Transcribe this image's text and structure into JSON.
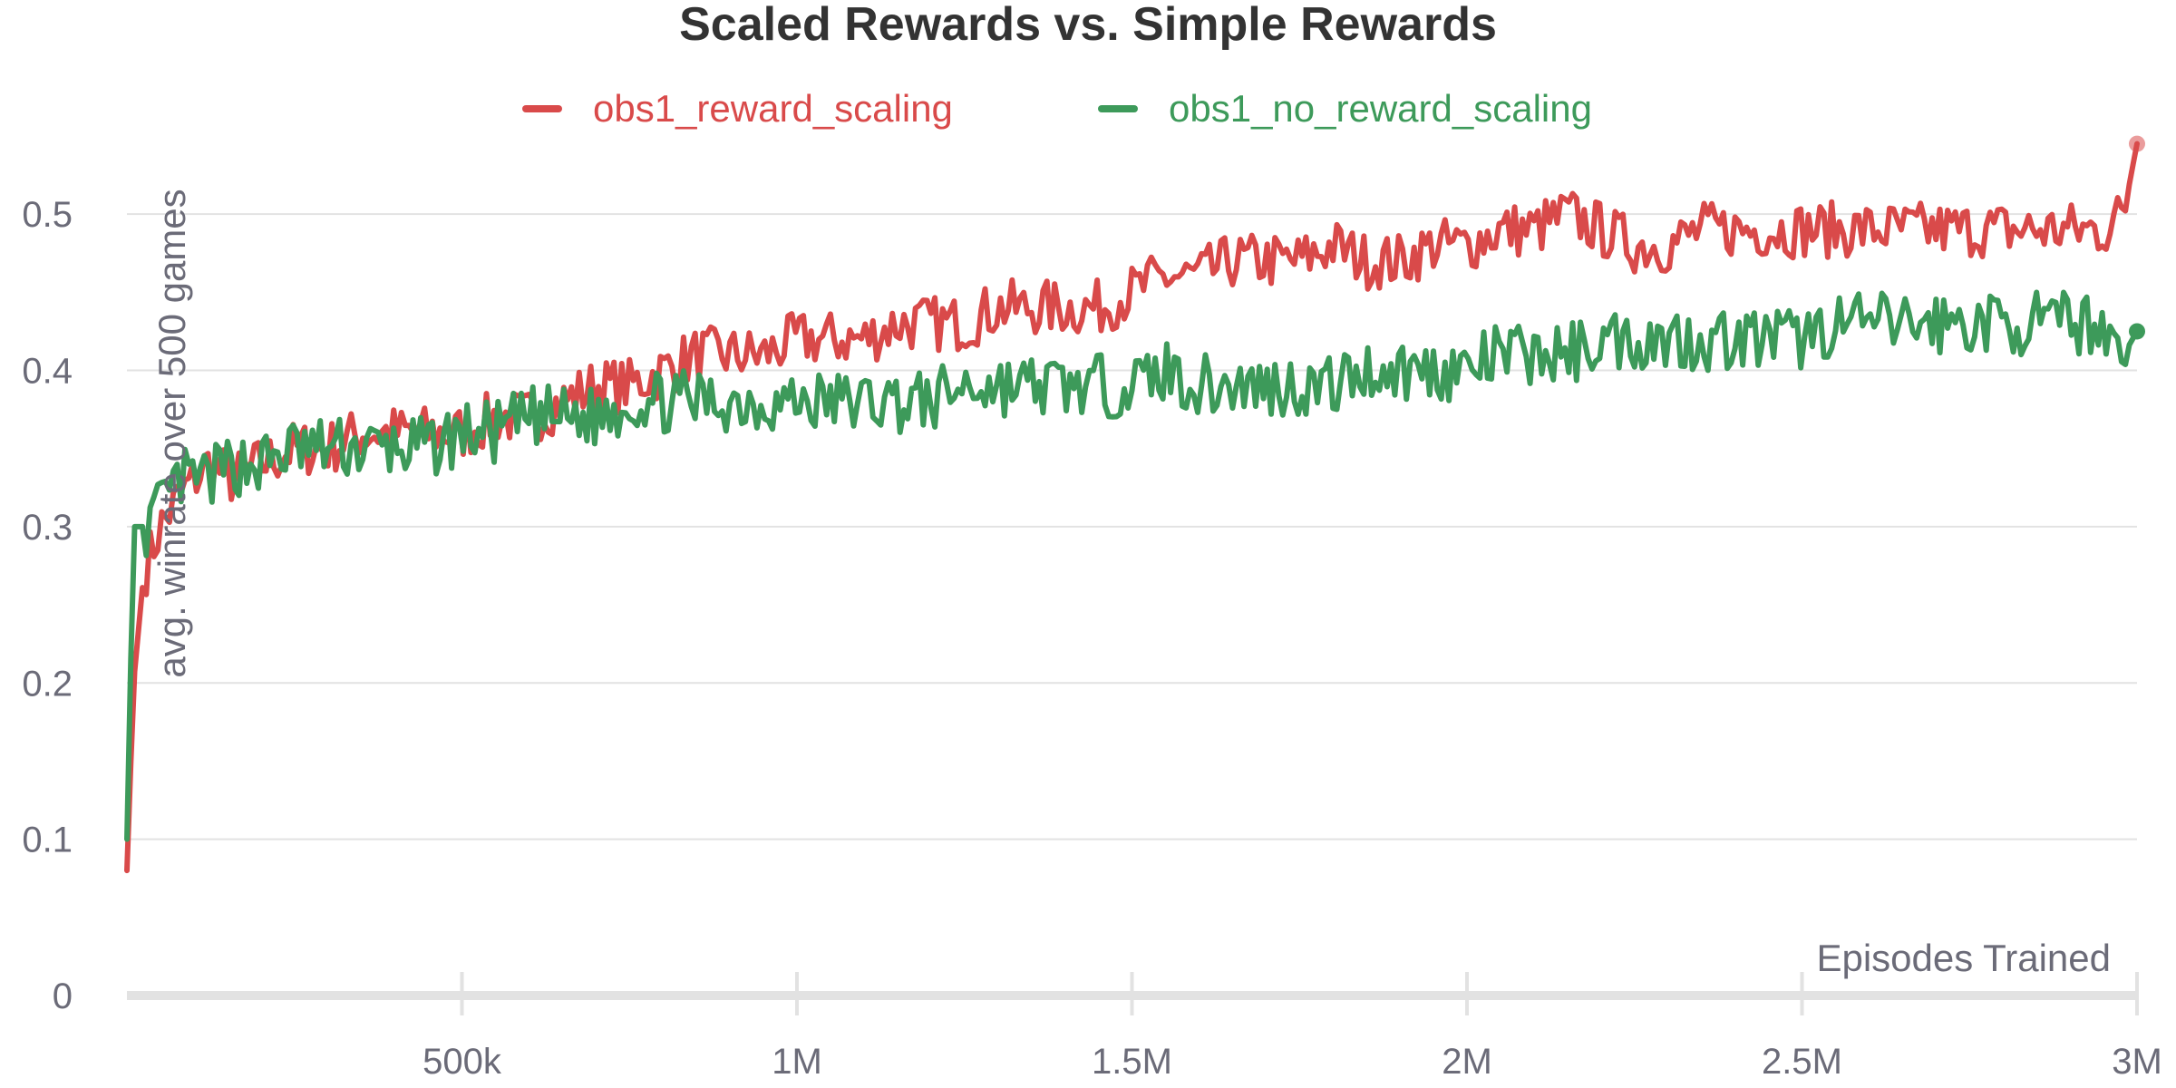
{
  "chart_data": {
    "type": "line",
    "title": "Scaled Rewards vs. Simple Rewards",
    "xlabel": "Episodes Trained",
    "ylabel": "avg. winrate over 500 games",
    "xlim": [
      0,
      3000000
    ],
    "ylim": [
      0,
      0.55
    ],
    "x_ticks": [
      500000,
      1000000,
      1500000,
      2000000,
      2500000,
      3000000
    ],
    "x_tick_labels": [
      "500k",
      "1M",
      "1.5M",
      "2M",
      "2.5M",
      "3M"
    ],
    "y_ticks": [
      0,
      0.1,
      0.2,
      0.3,
      0.4,
      0.5
    ],
    "y_tick_labels": [
      "0",
      "0.1",
      "0.2",
      "0.3",
      "0.4",
      "0.5"
    ],
    "grid": true,
    "legend_position": "top-center",
    "series": [
      {
        "name": "obs1_reward_scaling",
        "color": "#d94a4a",
        "points": [
          [
            0,
            0.08
          ],
          [
            10000,
            0.2
          ],
          [
            25000,
            0.27
          ],
          [
            50000,
            0.3
          ],
          [
            80000,
            0.32
          ],
          [
            120000,
            0.34
          ],
          [
            160000,
            0.33
          ],
          [
            200000,
            0.34
          ],
          [
            250000,
            0.35
          ],
          [
            300000,
            0.35
          ],
          [
            350000,
            0.36
          ],
          [
            400000,
            0.36
          ],
          [
            450000,
            0.36
          ],
          [
            500000,
            0.36
          ],
          [
            550000,
            0.37
          ],
          [
            600000,
            0.37
          ],
          [
            650000,
            0.38
          ],
          [
            700000,
            0.39
          ],
          [
            750000,
            0.39
          ],
          [
            800000,
            0.4
          ],
          [
            850000,
            0.41
          ],
          [
            900000,
            0.41
          ],
          [
            950000,
            0.41
          ],
          [
            1000000,
            0.42
          ],
          [
            1050000,
            0.42
          ],
          [
            1100000,
            0.42
          ],
          [
            1150000,
            0.43
          ],
          [
            1200000,
            0.43
          ],
          [
            1250000,
            0.43
          ],
          [
            1300000,
            0.44
          ],
          [
            1350000,
            0.44
          ],
          [
            1400000,
            0.44
          ],
          [
            1450000,
            0.44
          ],
          [
            1500000,
            0.45
          ],
          [
            1550000,
            0.46
          ],
          [
            1600000,
            0.46
          ],
          [
            1650000,
            0.47
          ],
          [
            1700000,
            0.47
          ],
          [
            1750000,
            0.47
          ],
          [
            1800000,
            0.48
          ],
          [
            1850000,
            0.47
          ],
          [
            1900000,
            0.47
          ],
          [
            1950000,
            0.48
          ],
          [
            2000000,
            0.48
          ],
          [
            2050000,
            0.49
          ],
          [
            2100000,
            0.49
          ],
          [
            2150000,
            0.5
          ],
          [
            2200000,
            0.49
          ],
          [
            2250000,
            0.48
          ],
          [
            2300000,
            0.48
          ],
          [
            2350000,
            0.49
          ],
          [
            2400000,
            0.49
          ],
          [
            2450000,
            0.49
          ],
          [
            2500000,
            0.49
          ],
          [
            2550000,
            0.49
          ],
          [
            2600000,
            0.49
          ],
          [
            2650000,
            0.49
          ],
          [
            2700000,
            0.49
          ],
          [
            2750000,
            0.49
          ],
          [
            2800000,
            0.49
          ],
          [
            2850000,
            0.49
          ],
          [
            2900000,
            0.49
          ],
          [
            2950000,
            0.49
          ],
          [
            2980000,
            0.5
          ],
          [
            3000000,
            0.545
          ]
        ]
      },
      {
        "name": "obs1_no_reward_scaling",
        "color": "#3d9a5a",
        "points": [
          [
            0,
            0.1
          ],
          [
            10000,
            0.3
          ],
          [
            25000,
            0.3
          ],
          [
            50000,
            0.31
          ],
          [
            80000,
            0.33
          ],
          [
            120000,
            0.33
          ],
          [
            160000,
            0.34
          ],
          [
            200000,
            0.34
          ],
          [
            250000,
            0.35
          ],
          [
            300000,
            0.35
          ],
          [
            350000,
            0.35
          ],
          [
            400000,
            0.35
          ],
          [
            450000,
            0.35
          ],
          [
            500000,
            0.36
          ],
          [
            550000,
            0.36
          ],
          [
            600000,
            0.37
          ],
          [
            650000,
            0.37
          ],
          [
            700000,
            0.37
          ],
          [
            750000,
            0.38
          ],
          [
            800000,
            0.38
          ],
          [
            850000,
            0.38
          ],
          [
            900000,
            0.38
          ],
          [
            950000,
            0.38
          ],
          [
            1000000,
            0.38
          ],
          [
            1050000,
            0.38
          ],
          [
            1100000,
            0.38
          ],
          [
            1150000,
            0.38
          ],
          [
            1200000,
            0.38
          ],
          [
            1250000,
            0.39
          ],
          [
            1300000,
            0.39
          ],
          [
            1350000,
            0.39
          ],
          [
            1400000,
            0.39
          ],
          [
            1450000,
            0.39
          ],
          [
            1500000,
            0.39
          ],
          [
            1550000,
            0.4
          ],
          [
            1600000,
            0.39
          ],
          [
            1650000,
            0.39
          ],
          [
            1700000,
            0.39
          ],
          [
            1750000,
            0.39
          ],
          [
            1800000,
            0.39
          ],
          [
            1850000,
            0.4
          ],
          [
            1900000,
            0.4
          ],
          [
            1950000,
            0.4
          ],
          [
            2000000,
            0.4
          ],
          [
            2050000,
            0.41
          ],
          [
            2100000,
            0.41
          ],
          [
            2150000,
            0.41
          ],
          [
            2200000,
            0.42
          ],
          [
            2250000,
            0.42
          ],
          [
            2300000,
            0.42
          ],
          [
            2350000,
            0.42
          ],
          [
            2400000,
            0.42
          ],
          [
            2450000,
            0.42
          ],
          [
            2500000,
            0.42
          ],
          [
            2550000,
            0.43
          ],
          [
            2600000,
            0.43
          ],
          [
            2650000,
            0.43
          ],
          [
            2700000,
            0.43
          ],
          [
            2750000,
            0.43
          ],
          [
            2800000,
            0.43
          ],
          [
            2850000,
            0.43
          ],
          [
            2900000,
            0.43
          ],
          [
            2950000,
            0.43
          ],
          [
            2980000,
            0.41
          ],
          [
            3000000,
            0.425
          ]
        ]
      }
    ]
  }
}
